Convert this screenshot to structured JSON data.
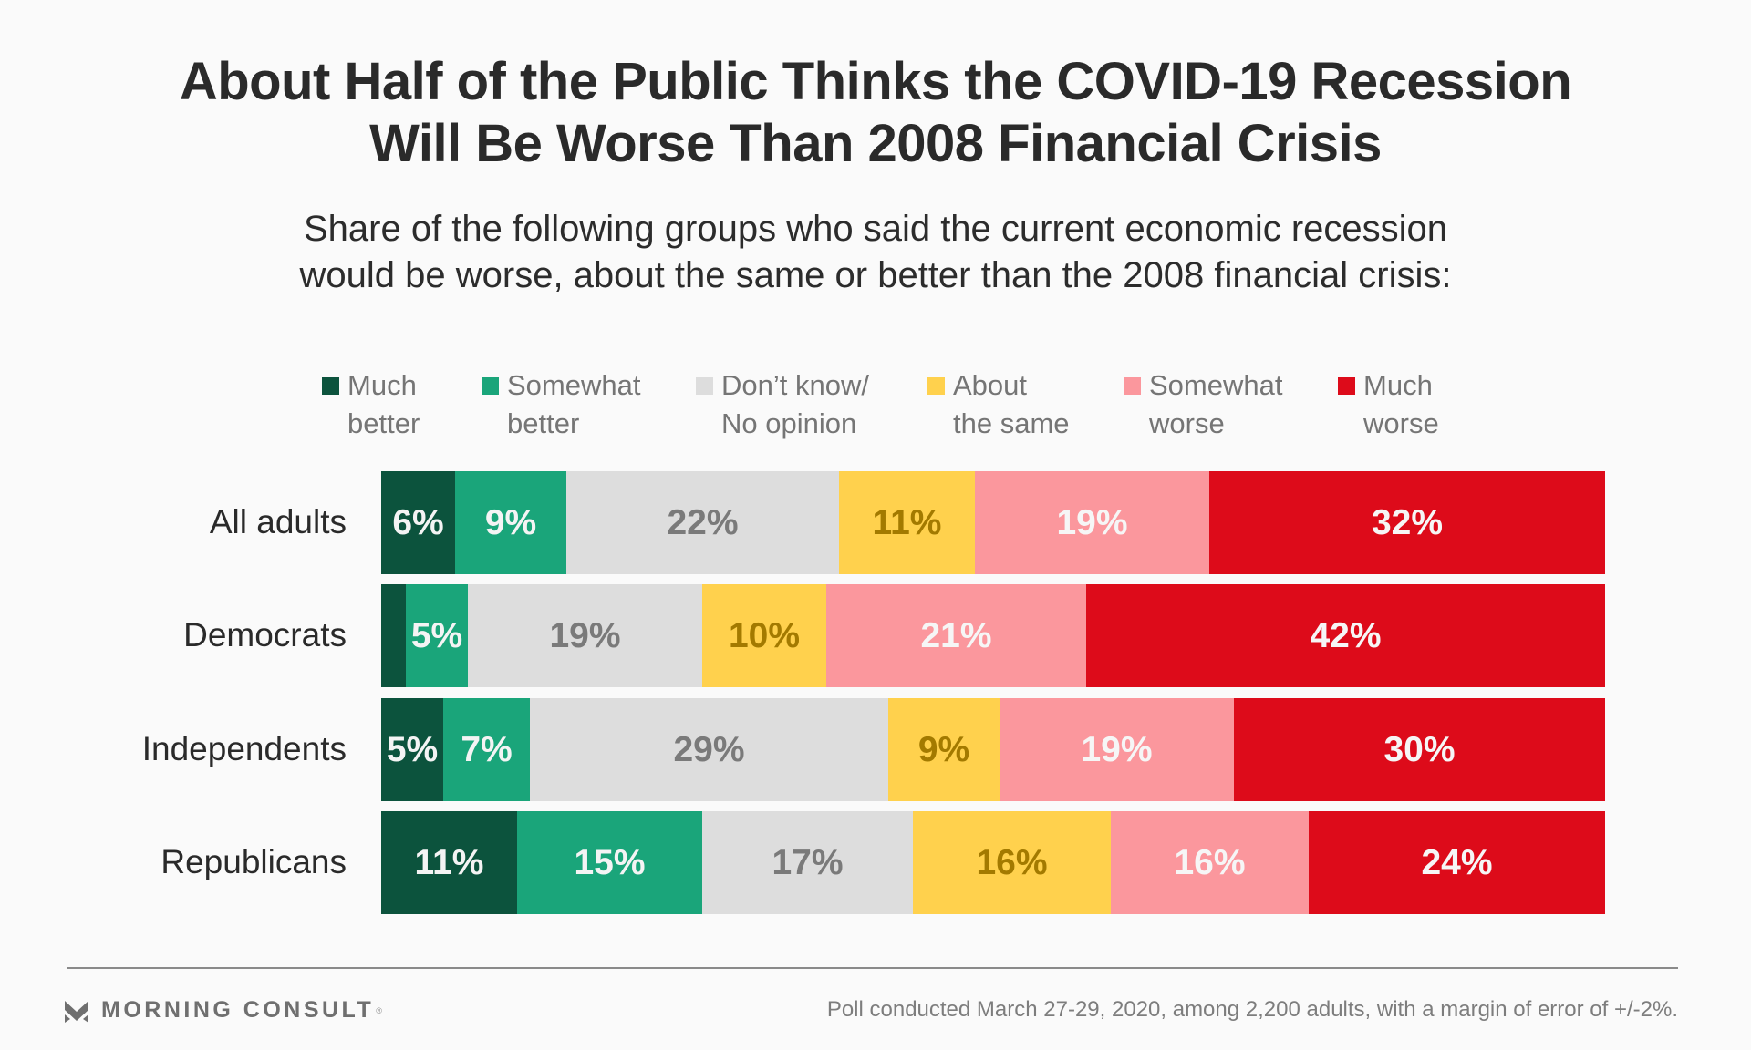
{
  "chart_data": {
    "type": "bar",
    "orientation": "horizontal",
    "stacked": true,
    "normalized_to": 100,
    "title": "About Half of the Public Thinks the COVID-19 Recession Will Be Worse Than 2008 Financial Crisis",
    "title_lines": [
      "About Half of the Public Thinks the COVID-19 Recession",
      "Will Be Worse Than 2008 Financial Crisis"
    ],
    "subtitle": "Share of the following groups who said the current economic recession would be worse, about the same or better than the 2008 financial crisis:",
    "subtitle_lines": [
      "Share of the following groups who said the current economic recession",
      "would be worse, about the same or better than the 2008 financial crisis:"
    ],
    "xlabel": "",
    "ylabel": "",
    "grid": false,
    "legend_position": "top",
    "categories": [
      "All adults",
      "Democrats",
      "Independents",
      "Republicans"
    ],
    "series": [
      {
        "name": "Much better",
        "legend_lines": [
          "Much",
          "better"
        ],
        "color": "#0c533d",
        "label_color": "#f4f4f4",
        "values": [
          6,
          2,
          5,
          11
        ],
        "labels": [
          "6%",
          "",
          "5%",
          "11%"
        ]
      },
      {
        "name": "Somewhat better",
        "legend_lines": [
          "Somewhat",
          "better"
        ],
        "color": "#1aa57a",
        "label_color": "#f4f4f4",
        "values": [
          9,
          5,
          7,
          15
        ],
        "labels": [
          "9%",
          "5%",
          "7%",
          "15%"
        ]
      },
      {
        "name": "Don't know/No opinion",
        "legend_lines": [
          "Don’t know/",
          "No opinion"
        ],
        "color": "#dddddd",
        "label_color": "#7a7a7a",
        "values": [
          22,
          19,
          29,
          17
        ],
        "labels": [
          "22%",
          "19%",
          "29%",
          "17%"
        ]
      },
      {
        "name": "About the same",
        "legend_lines": [
          "About",
          "the same"
        ],
        "color": "#ffd14d",
        "label_color": "#a37a00",
        "values": [
          11,
          10,
          9,
          16
        ],
        "labels": [
          "11%",
          "10%",
          "9%",
          "16%"
        ]
      },
      {
        "name": "Somewhat worse",
        "legend_lines": [
          "Somewhat",
          "worse"
        ],
        "color": "#fb979d",
        "label_color": "#f6f6f6",
        "values": [
          19,
          21,
          19,
          16
        ],
        "labels": [
          "19%",
          "21%",
          "19%",
          "16%"
        ]
      },
      {
        "name": "Much worse",
        "legend_lines": [
          "Much",
          "worse"
        ],
        "color": "#dd0b1a",
        "label_color": "#f6f6f6",
        "values": [
          32,
          42,
          30,
          24
        ],
        "labels": [
          "32%",
          "42%",
          "30%",
          "24%"
        ]
      }
    ]
  },
  "footer": {
    "brand": "MORNING CONSULT",
    "brand_mark": "registered",
    "note": "Poll conducted March 27-29, 2020, among 2,200 adults, with a margin of error of +/-2%."
  }
}
